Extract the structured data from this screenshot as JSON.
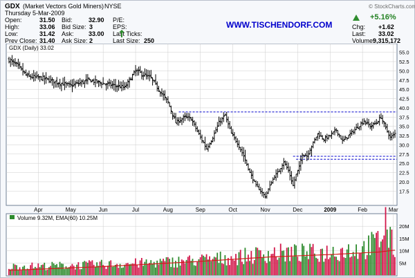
{
  "header": {
    "symbol": "GDX",
    "name": "(Market Vectors Gold Miners)",
    "exchange": "NYSE",
    "brand": "© StockCharts.com",
    "date": "Thursday 5-Mar-2009",
    "website": "WWW.TISCHENDORF.COM",
    "open_label": "Open:",
    "open": "31.50",
    "high_label": "High:",
    "high": "33.06",
    "low_label": "Low:",
    "low": "31.42",
    "prev_label": "Prev Close:",
    "prev": "31.40",
    "bid_label": "Bid:",
    "bid": "32.90",
    "bidsize_label": "Bid Size:",
    "bidsize": "3",
    "ask_label": "Ask:",
    "ask": "33.00",
    "asksize_label": "Ask Size:",
    "asksize": "2",
    "pe_label": "P/E:",
    "eps_label": "EPS:",
    "lastticks_label": "Last Ticks:",
    "lastsize_label": "Last Size:",
    "lastsize": "250",
    "chg_pct": "+5.16%",
    "chg_label": "Chg:",
    "chg": "+1.62",
    "last_label": "Last:",
    "last": "33.02",
    "volume_label": "Volume:",
    "volume": "9,315,172"
  },
  "colors": {
    "bar": "#000000",
    "up_volume": "#2e8b2e",
    "down_volume": "#d2174a",
    "ema": "#d21a1a",
    "resistance": "#0000cc",
    "grid": "#cccccc"
  },
  "chart_data": [
    {
      "type": "ohlc",
      "title": "GDX (Daily) 33.02",
      "y_axis": {
        "position": "right",
        "range": [
          14,
          57
        ],
        "ticks": [
          17.5,
          20.0,
          22.5,
          25.0,
          27.5,
          30.0,
          32.5,
          35.0,
          37.5,
          40.0,
          42.5,
          45.0,
          47.5,
          50.0,
          52.5,
          55.0
        ]
      },
      "x_axis": {
        "labels": [
          "Apr",
          "May",
          "Jun",
          "Jul",
          "Aug",
          "Sep",
          "Oct",
          "Nov",
          "Dec",
          "2009",
          "Feb",
          "Mar"
        ]
      },
      "grid": true,
      "horizontal_lines": [
        38.9,
        26.9,
        26.1
      ],
      "x_domain": [
        0,
        250
      ],
      "label_positions": [
        19,
        40,
        61,
        82,
        103,
        124,
        145,
        166,
        187,
        208,
        229,
        249
      ],
      "close_anchors": [
        [
          0,
          53.0
        ],
        [
          5,
          51.5
        ],
        [
          12,
          48.5
        ],
        [
          22,
          48.0
        ],
        [
          30,
          47.0
        ],
        [
          40,
          46.0
        ],
        [
          52,
          47.5
        ],
        [
          62,
          46.5
        ],
        [
          75,
          45.5
        ],
        [
          82,
          50.0
        ],
        [
          92,
          48.0
        ],
        [
          97,
          45.0
        ],
        [
          103,
          41.5
        ],
        [
          108,
          36.0
        ],
        [
          114,
          37.5
        ],
        [
          118,
          37.0
        ],
        [
          124,
          32.0
        ],
        [
          128,
          29.0
        ],
        [
          132,
          32.0
        ],
        [
          136,
          36.0
        ],
        [
          140,
          38.0
        ],
        [
          144,
          33.0
        ],
        [
          148,
          30.5
        ],
        [
          152,
          27.0
        ],
        [
          156,
          22.5
        ],
        [
          160,
          19.0
        ],
        [
          163,
          17.5
        ],
        [
          166,
          16.0
        ],
        [
          169,
          19.0
        ],
        [
          172,
          21.5
        ],
        [
          175,
          23.0
        ],
        [
          178,
          25.5
        ],
        [
          181,
          23.0
        ],
        [
          184,
          19.0
        ],
        [
          186,
          22.0
        ],
        [
          188,
          24.0
        ],
        [
          190,
          27.5
        ],
        [
          193,
          27.0
        ],
        [
          197,
          30.5
        ],
        [
          200,
          33.0
        ],
        [
          204,
          31.5
        ],
        [
          208,
          32.5
        ],
        [
          212,
          34.0
        ],
        [
          216,
          31.0
        ],
        [
          220,
          32.5
        ],
        [
          225,
          34.5
        ],
        [
          230,
          36.5
        ],
        [
          234,
          35.0
        ],
        [
          238,
          36.0
        ],
        [
          241,
          37.5
        ],
        [
          244,
          34.5
        ],
        [
          247,
          32.0
        ],
        [
          250,
          33.0
        ]
      ]
    },
    {
      "type": "bar",
      "title": "Volume 9.32M, EMA(60) 10.25M",
      "y_axis": {
        "position": "right",
        "range": [
          0,
          24
        ],
        "ticks": [
          "5M",
          "10M",
          "15M",
          "20M"
        ]
      },
      "volume_anchors": [
        [
          0,
          3.5
        ],
        [
          40,
          4.0
        ],
        [
          90,
          5.0
        ],
        [
          120,
          6.0
        ],
        [
          150,
          7.5
        ],
        [
          170,
          9.0
        ],
        [
          200,
          9.0
        ],
        [
          230,
          11.0
        ],
        [
          240,
          14.0
        ],
        [
          243,
          20.0
        ],
        [
          244,
          23.0
        ],
        [
          246,
          15.0
        ],
        [
          250,
          11.0
        ]
      ],
      "ema_anchors": [
        [
          0,
          2.0
        ],
        [
          60,
          3.5
        ],
        [
          120,
          5.5
        ],
        [
          170,
          7.5
        ],
        [
          210,
          8.5
        ],
        [
          240,
          9.5
        ],
        [
          250,
          10.25
        ]
      ],
      "current_value": "9.32M",
      "ema_value": "10.25M"
    }
  ]
}
